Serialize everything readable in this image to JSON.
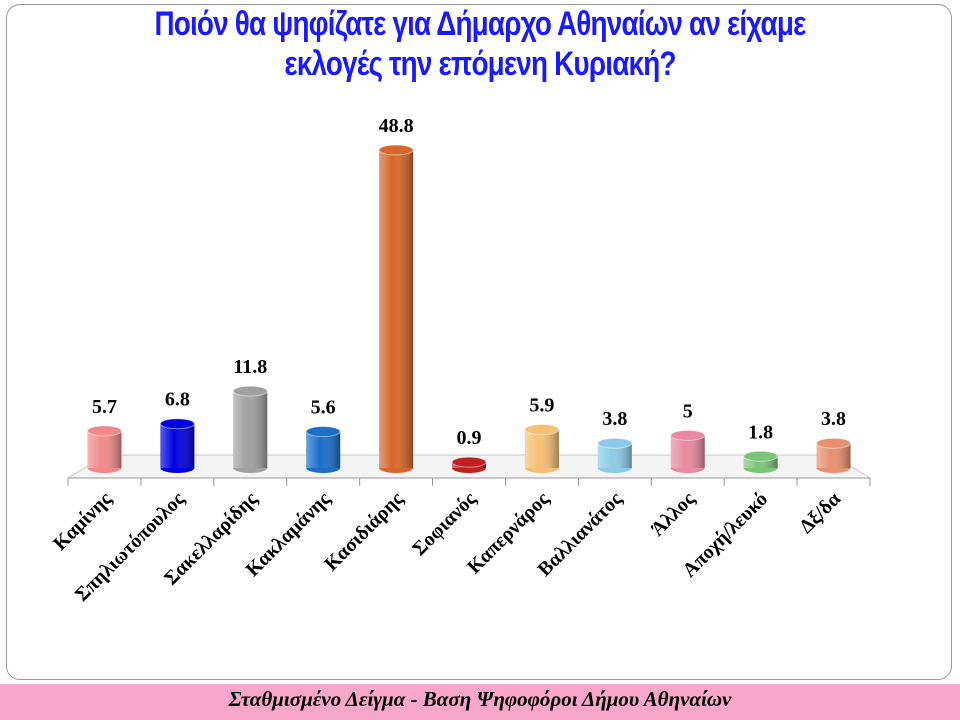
{
  "chart_data": {
    "type": "bar",
    "title": "Ποιόν θα ψηφίζατε για Δήμαρχο Αθηναίων αν είχαμε εκλογές την επόμενη Κυριακή?",
    "categories": [
      "Καμίνης",
      "Σπηλιωτόπουλος",
      "Σακελλαρίδης",
      "Κακλαμάνης",
      "Κασιδιάρης",
      "Σοφιανός",
      "Καπερνάρος",
      "Βαλλιανάτος",
      "Άλλος",
      "Αποχή/λευκό",
      "Δξ/δα"
    ],
    "values": [
      5.7,
      6.8,
      11.8,
      5.6,
      48.8,
      0.9,
      5.9,
      3.8,
      5,
      1.8,
      3.8
    ],
    "colors": [
      "#f08a8a",
      "#0000e0",
      "#a0a0a0",
      "#1a6fc8",
      "#d8662a",
      "#c02020",
      "#f5c071",
      "#8ccbe6",
      "#e88aa0",
      "#7cc47a",
      "#e89070"
    ],
    "footer": "Σταθμισμένο Δείγμα  - Βαση Ψηφοφόροι Δήμου Αθηναίων"
  }
}
